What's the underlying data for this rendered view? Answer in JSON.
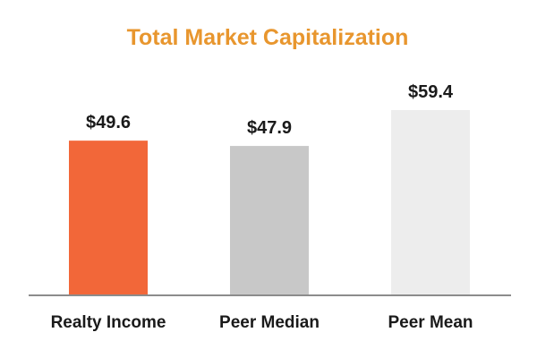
{
  "colors": {
    "title": "#E8962E",
    "axis": "#8C8C8C",
    "bars": [
      "#F26739",
      "#C8C8C8",
      "#EDEDED"
    ]
  },
  "chart_data": {
    "type": "bar",
    "title": "Total Market Capitalization",
    "categories": [
      "Realty Income",
      "Peer Median",
      "Peer Mean"
    ],
    "values": [
      49.6,
      47.9,
      59.4
    ],
    "data_labels": [
      "$49.6",
      "$47.9",
      "$59.4"
    ],
    "xlabel": "",
    "ylabel": "",
    "ylim": [
      0,
      66
    ],
    "grid": false,
    "legend": "none"
  }
}
